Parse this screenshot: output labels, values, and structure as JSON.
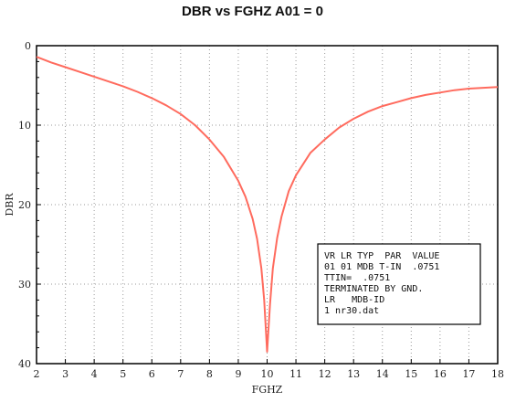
{
  "title": "DBR vs FGHZ  A01 = 0",
  "chart_data": {
    "type": "line",
    "title": "DBR vs FGHZ  A01 = 0",
    "xlabel": "FGHZ",
    "ylabel": "DBR",
    "xlim": [
      2,
      18
    ],
    "ylim": [
      0,
      40
    ],
    "y_inverted": true,
    "grid": true,
    "x_ticks": [
      2,
      3,
      4,
      5,
      6,
      7,
      8,
      9,
      10,
      11,
      12,
      13,
      14,
      15,
      16,
      17,
      18
    ],
    "y_ticks": [
      0,
      10,
      20,
      30,
      40
    ],
    "line_color": "#ff6b5e",
    "series": [
      {
        "x": [
          2,
          2.5,
          3,
          3.5,
          4,
          4.5,
          5,
          5.5,
          6,
          6.5,
          7,
          7.5,
          8,
          8.5,
          9,
          9.25,
          9.5,
          9.65,
          9.8,
          9.9,
          10,
          10.1,
          10.2,
          10.35,
          10.5,
          10.75,
          11,
          11.5,
          12,
          12.5,
          13,
          13.5,
          14,
          14.5,
          15,
          15.5,
          16,
          16.5,
          17,
          17.5,
          18
        ],
        "y": [
          1.4,
          2.1,
          2.7,
          3.3,
          3.9,
          4.5,
          5.1,
          5.8,
          6.6,
          7.5,
          8.6,
          10.0,
          11.8,
          14.0,
          17.0,
          19.0,
          21.8,
          24.3,
          28.0,
          32.0,
          38.5,
          32.5,
          28.0,
          24.2,
          21.5,
          18.3,
          16.3,
          13.5,
          11.8,
          10.3,
          9.2,
          8.3,
          7.6,
          7.1,
          6.6,
          6.2,
          5.9,
          5.6,
          5.4,
          5.3,
          5.2
        ]
      }
    ],
    "legend": {
      "position": "bottom-right",
      "lines": [
        "VR LR TYP  PAR  VALUE",
        "01 01 MDB T-IN  .0751",
        "TTIN=  .0751",
        "TERMINATED BY GND.",
        "LR   MDB-ID",
        "1 nr30.dat"
      ]
    }
  }
}
